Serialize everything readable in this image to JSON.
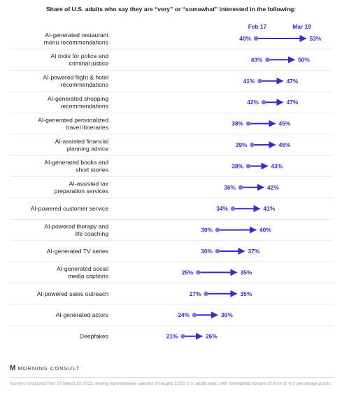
{
  "chart_data": {
    "type": "dumbbell",
    "title": "Share of U.S. adults who say they are “very” or “somewhat” interested in the following:",
    "series": [
      {
        "name": "Feb 17",
        "values": [
          40,
          43,
          41,
          42,
          38,
          39,
          38,
          36,
          34,
          30,
          30,
          25,
          27,
          24,
          21
        ]
      },
      {
        "name": "Mar 19",
        "values": [
          53,
          50,
          47,
          47,
          45,
          45,
          43,
          42,
          41,
          40,
          37,
          35,
          35,
          30,
          26
        ]
      }
    ],
    "categories": [
      [
        "AI-generated restaurant",
        "menu recommendations"
      ],
      [
        "AI tools for police and",
        "criminal justice"
      ],
      [
        "AI-powered flight & hotel",
        "recommendations"
      ],
      [
        "AI-generated shopping",
        "recommendations"
      ],
      [
        "AI-generated personalized",
        "travel itineraries"
      ],
      [
        "AI-assisted financial",
        "planning advice"
      ],
      [
        "AI-generated books and",
        "short stories"
      ],
      [
        "AI-assisted tax",
        "preparation services"
      ],
      [
        "AI-powered customer service"
      ],
      [
        "AI-powered therapy and",
        "life coaching"
      ],
      [
        "AI-generated TV series"
      ],
      [
        "AI-generated social",
        "media captions"
      ],
      [
        "AI-powered sales outreach"
      ],
      [
        "AI-generated actors"
      ],
      [
        "Deepfakes"
      ]
    ],
    "value_suffix": "%",
    "colors": {
      "accent": "#4a22c7",
      "dot": "#8f6be8",
      "text": "#1b1b1b",
      "divider": "#e3e3e3"
    }
  },
  "footer": {
    "brand_name": "MORNING CONSULT",
    "note": "Surveys conducted Feb. 17-March 19, 2023, among representative samples of roughly 2,200 U.S. adults each, with unweighted margins of error of +/-2 percentage points."
  }
}
